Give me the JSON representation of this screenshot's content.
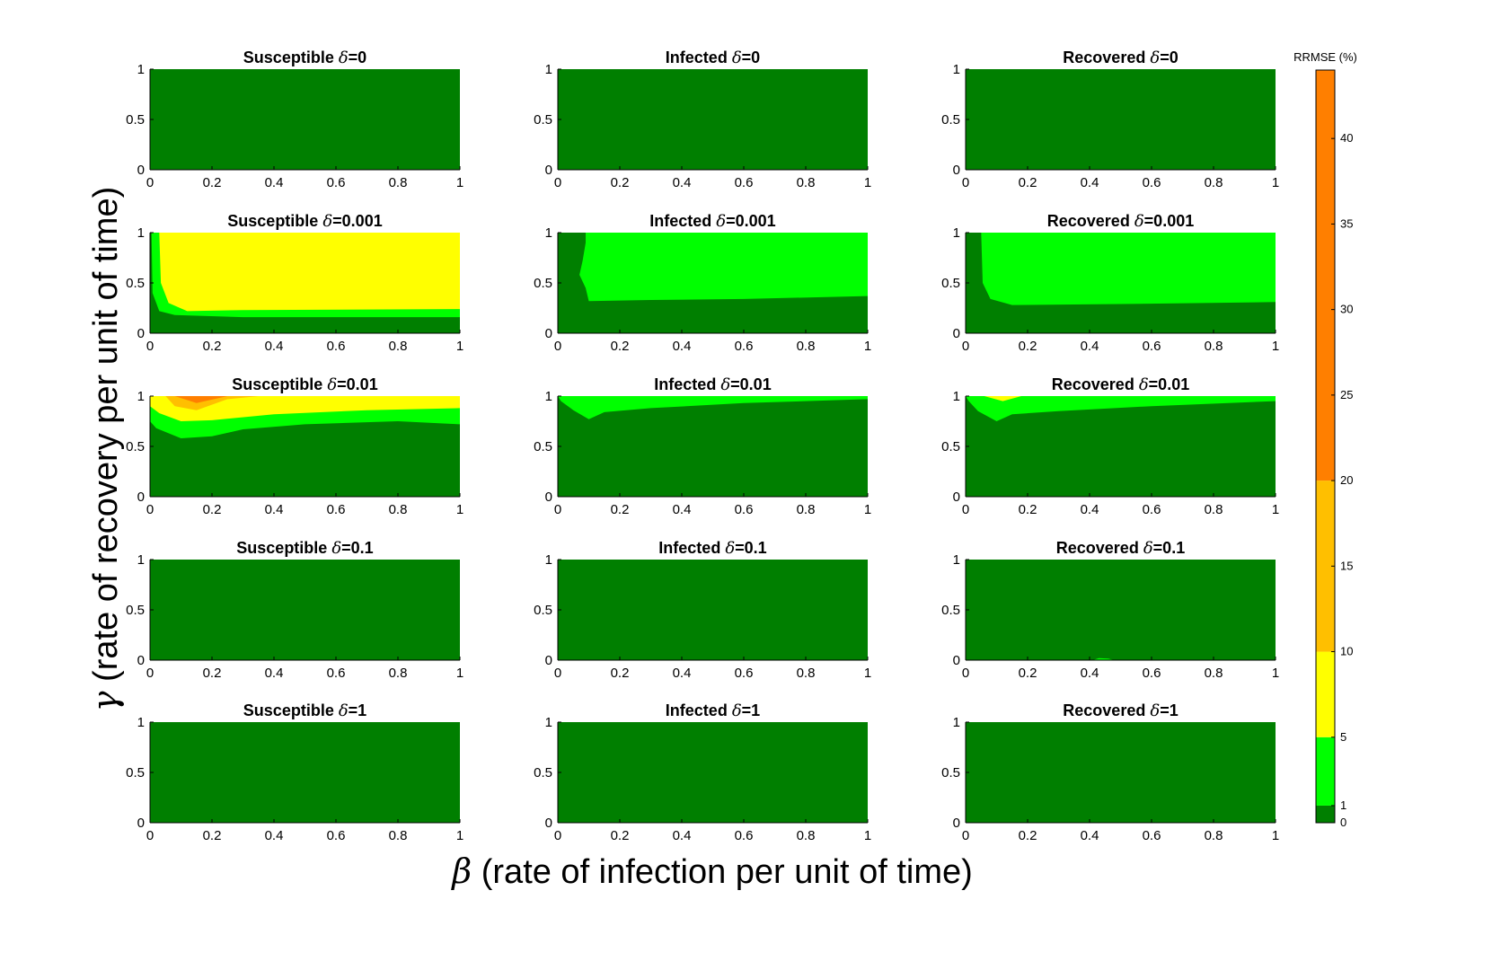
{
  "chart_data": {
    "type": "heatmap",
    "figure": {
      "xlabel_symbol": "β",
      "xlabel_text": " (rate of infection per unit of time)",
      "ylabel_symbol": "γ",
      "ylabel_text": " (rate of recovery per unit of time)",
      "grid": false
    },
    "colorbar": {
      "title": "RRMSE (%)",
      "levels": [
        0,
        1,
        5,
        10,
        20,
        44
      ],
      "colors": [
        "#007f00",
        "#00ff00",
        "#ffff00",
        "#ffbf00",
        "#ff7f00",
        "#ff0000"
      ],
      "ticks": [
        0,
        1,
        5,
        10,
        15,
        20,
        25,
        30,
        35,
        40
      ],
      "tick_labels": [
        "0",
        "1",
        "5",
        "10",
        "15",
        "20",
        "25",
        "30",
        "35",
        "40"
      ]
    },
    "xticks": [
      "0",
      "0.2",
      "0.4",
      "0.6",
      "0.8",
      "1"
    ],
    "yticks": [
      "0",
      "0.5",
      "1"
    ],
    "xlim": [
      0,
      1
    ],
    "ylim": [
      0,
      1
    ],
    "compartments": [
      "Susceptible",
      "Infected",
      "Recovered"
    ],
    "panels": [
      {
        "compartment": "Susceptible",
        "delta": "0",
        "title_prefix": "Susceptible ",
        "delta_symbol": "δ",
        "title_suffix": "=0",
        "regions": []
      },
      {
        "compartment": "Infected",
        "delta": "0",
        "title_prefix": "Infected ",
        "delta_symbol": "δ",
        "title_suffix": "=0",
        "regions": []
      },
      {
        "compartment": "Recovered",
        "delta": "0",
        "title_prefix": "Recovered ",
        "delta_symbol": "δ",
        "title_suffix": "=0",
        "regions": []
      },
      {
        "compartment": "Susceptible",
        "delta": "0.001",
        "title_prefix": "Susceptible ",
        "delta_symbol": "δ",
        "title_suffix": "=0.001",
        "regions": [
          {
            "level": 1,
            "points": [
              [
                0.005,
                1
              ],
              [
                1,
                1
              ],
              [
                1,
                0.16
              ],
              [
                0.3,
                0.16
              ],
              [
                0.08,
                0.18
              ],
              [
                0.03,
                0.22
              ],
              [
                0.008,
                0.4
              ]
            ]
          },
          {
            "level": 2,
            "points": [
              [
                0.03,
                1
              ],
              [
                1,
                1
              ],
              [
                1,
                0.24
              ],
              [
                0.3,
                0.23
              ],
              [
                0.12,
                0.22
              ],
              [
                0.06,
                0.3
              ],
              [
                0.035,
                0.5
              ]
            ]
          }
        ]
      },
      {
        "compartment": "Infected",
        "delta": "0.001",
        "title_prefix": "Infected ",
        "delta_symbol": "δ",
        "title_suffix": "=0.001",
        "regions": [
          {
            "level": 1,
            "points": [
              [
                0.09,
                1
              ],
              [
                1,
                1
              ],
              [
                1,
                0.37
              ],
              [
                0.6,
                0.34
              ],
              [
                0.3,
                0.33
              ],
              [
                0.1,
                0.32
              ],
              [
                0.09,
                0.45
              ],
              [
                0.07,
                0.58
              ],
              [
                0.08,
                0.72
              ],
              [
                0.09,
                0.9
              ]
            ]
          }
        ]
      },
      {
        "compartment": "Recovered",
        "delta": "0.001",
        "title_prefix": "Recovered ",
        "delta_symbol": "δ",
        "title_suffix": "=0.001",
        "regions": [
          {
            "level": 1,
            "points": [
              [
                0.05,
                1
              ],
              [
                1,
                1
              ],
              [
                1,
                0.31
              ],
              [
                0.5,
                0.29
              ],
              [
                0.15,
                0.28
              ],
              [
                0.08,
                0.34
              ],
              [
                0.055,
                0.5
              ]
            ]
          }
        ]
      },
      {
        "compartment": "Susceptible",
        "delta": "0.01",
        "title_prefix": "Susceptible ",
        "delta_symbol": "δ",
        "title_suffix": "=0.01",
        "regions": [
          {
            "level": 1,
            "points": [
              [
                0,
                1
              ],
              [
                1,
                1
              ],
              [
                1,
                0.72
              ],
              [
                0.8,
                0.75
              ],
              [
                0.5,
                0.72
              ],
              [
                0.3,
                0.67
              ],
              [
                0.2,
                0.6
              ],
              [
                0.1,
                0.58
              ],
              [
                0.02,
                0.68
              ],
              [
                0,
                0.75
              ]
            ]
          },
          {
            "level": 2,
            "points": [
              [
                0,
                1
              ],
              [
                1,
                1
              ],
              [
                1,
                0.88
              ],
              [
                0.7,
                0.86
              ],
              [
                0.4,
                0.82
              ],
              [
                0.2,
                0.76
              ],
              [
                0.1,
                0.75
              ],
              [
                0.03,
                0.83
              ],
              [
                0,
                0.9
              ]
            ]
          },
          {
            "level": 3,
            "points": [
              [
                0.05,
                1
              ],
              [
                0.35,
                1
              ],
              [
                0.25,
                0.97
              ],
              [
                0.15,
                0.86
              ],
              [
                0.08,
                0.9
              ]
            ]
          },
          {
            "level": 4,
            "points": [
              [
                0.08,
                1
              ],
              [
                0.25,
                1
              ],
              [
                0.15,
                0.93
              ]
            ]
          }
        ]
      },
      {
        "compartment": "Infected",
        "delta": "0.01",
        "title_prefix": "Infected ",
        "delta_symbol": "δ",
        "title_suffix": "=0.01",
        "regions": [
          {
            "level": 1,
            "points": [
              [
                0,
                1
              ],
              [
                1,
                1
              ],
              [
                1,
                0.97
              ],
              [
                0.6,
                0.93
              ],
              [
                0.3,
                0.88
              ],
              [
                0.15,
                0.84
              ],
              [
                0.1,
                0.77
              ],
              [
                0.05,
                0.86
              ],
              [
                0.01,
                0.95
              ],
              [
                0,
                1
              ]
            ]
          }
        ]
      },
      {
        "compartment": "Recovered",
        "delta": "0.01",
        "title_prefix": "Recovered ",
        "delta_symbol": "δ",
        "title_suffix": "=0.01",
        "regions": [
          {
            "level": 1,
            "points": [
              [
                0,
                1
              ],
              [
                1,
                1
              ],
              [
                1,
                0.95
              ],
              [
                0.6,
                0.9
              ],
              [
                0.3,
                0.85
              ],
              [
                0.15,
                0.82
              ],
              [
                0.1,
                0.75
              ],
              [
                0.04,
                0.85
              ],
              [
                0.01,
                0.95
              ],
              [
                0,
                1
              ]
            ]
          },
          {
            "level": 2,
            "points": [
              [
                0.06,
                1
              ],
              [
                0.18,
                1
              ],
              [
                0.12,
                0.95
              ]
            ]
          }
        ]
      },
      {
        "compartment": "Susceptible",
        "delta": "0.1",
        "title_prefix": "Susceptible ",
        "delta_symbol": "δ",
        "title_suffix": "=0.1",
        "regions": []
      },
      {
        "compartment": "Infected",
        "delta": "0.1",
        "title_prefix": "Infected ",
        "delta_symbol": "δ",
        "title_suffix": "=0.1",
        "regions": []
      },
      {
        "compartment": "Recovered",
        "delta": "0.1",
        "title_prefix": "Recovered ",
        "delta_symbol": "δ",
        "title_suffix": "=0.1",
        "regions": [
          {
            "level": 1,
            "points": [
              [
                0.41,
                0
              ],
              [
                0.43,
                0.02
              ],
              [
                0.46,
                0.015
              ],
              [
                0.48,
                0
              ]
            ]
          }
        ]
      },
      {
        "compartment": "Susceptible",
        "delta": "1",
        "title_prefix": "Susceptible ",
        "delta_symbol": "δ",
        "title_suffix": "=1",
        "regions": []
      },
      {
        "compartment": "Infected",
        "delta": "1",
        "title_prefix": "Infected ",
        "delta_symbol": "δ",
        "title_suffix": "=1",
        "regions": []
      },
      {
        "compartment": "Recovered",
        "delta": "1",
        "title_prefix": "Recovered ",
        "delta_symbol": "δ",
        "title_suffix": "=1",
        "regions": []
      }
    ]
  }
}
